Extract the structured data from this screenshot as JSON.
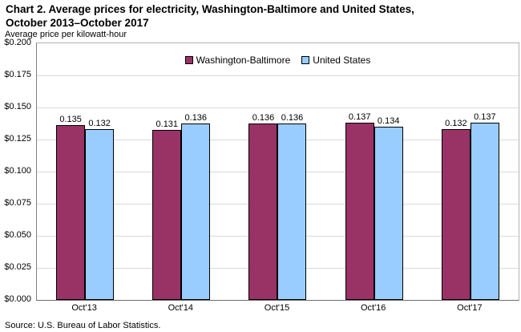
{
  "header": {
    "title_line1": "Chart 2. Average prices for electricity, Washington-Baltimore and United States,",
    "title_line2": "October 2013–October 2017",
    "subtitle": "Average price per kilowatt-hour"
  },
  "source": "Source: U.S. Bureau of Labor Statistics.",
  "colors": {
    "washington_baltimore": "#993366",
    "united_states": "#99CCFF",
    "bar_border": "#000000",
    "gridline": "#d9d9d9",
    "plot_border_light": "#b3b3b3",
    "plot_border_dark": "#808080",
    "text": "#000000"
  },
  "chart_data": {
    "type": "bar",
    "title": "Chart 2. Average prices for electricity, Washington-Baltimore and United States, October 2013–October 2017",
    "xlabel": "",
    "ylabel": "Average price per kilowatt-hour",
    "categories": [
      "Oct'13",
      "Oct'14",
      "Oct'15",
      "Oct'16",
      "Oct'17"
    ],
    "series": [
      {
        "name": "Washington-Baltimore",
        "color": "#993366",
        "values": [
          0.135,
          0.131,
          0.136,
          0.137,
          0.132
        ]
      },
      {
        "name": "United States",
        "color": "#99CCFF",
        "values": [
          0.132,
          0.136,
          0.136,
          0.134,
          0.137
        ]
      }
    ],
    "ylim": [
      0,
      0.2
    ],
    "ytick_step": 0.025,
    "ytick_prefix": "$",
    "ytick_decimals": 3,
    "value_label_decimals": 3,
    "grid": true,
    "legend_position": "top-center",
    "value_labels": true
  }
}
